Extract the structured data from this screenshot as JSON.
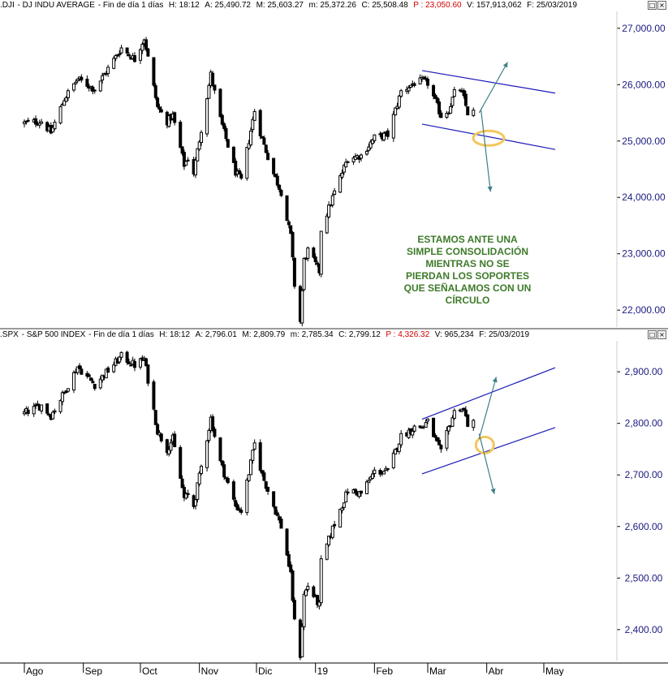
{
  "panels": [
    {
      "header": {
        "symbol": ".DJI",
        "name": "DJ INDU AVERAGE",
        "period": "Fin de día 1 días",
        "time": "H: 18:12",
        "open": "A: 25,490.72",
        "high": "M: 25,603.27",
        "low": "m: 25,372.26",
        "close": "C: 25,508.48",
        "p": "P : 23,050.60",
        "volume": "V: 157,913,062",
        "date": "F: 25/03/2019"
      },
      "window_buttons": [
        "□",
        "×"
      ]
    },
    {
      "header": {
        "symbol": ".SPX",
        "name": "S&P 500 INDEX",
        "period": "Fin de día 1 días",
        "time": "H: 18:12",
        "open": "A: 2,796.01",
        "high": "M: 2,809.79",
        "low": "m: 2,785.34",
        "close": "C: 2,799.12",
        "p": "P : 4,326.32",
        "volume": "V: 965,234",
        "date": "F: 25/03/2019"
      },
      "window_buttons": [
        "□",
        "×"
      ]
    }
  ],
  "annotation": {
    "lines": [
      "ESTAMOS ANTE UNA",
      "SIMPLE CONSOLIDACIÓN",
      "MIENTRAS NO SE",
      "PIERDAN LOS SOPORTES",
      "QUE SEÑALAMOS CON UN",
      "CÍRCULO"
    ],
    "color": "#3e7a2a"
  },
  "colors": {
    "candles": "#000000",
    "channel_lines": "#1a1ab8",
    "arrows": "#3d7f86",
    "circle": "#f2c75c",
    "axis_labels": "#1a1a80"
  },
  "chart_data": [
    {
      "type": "candlestick",
      "title": ".DJI - DJ INDU AVERAGE",
      "x_range": [
        "2018-08-01",
        "2019-05-31"
      ],
      "ylim": [
        21700,
        27300
      ],
      "yticks": [
        22000,
        23000,
        24000,
        25000,
        26000,
        27000
      ],
      "ytick_labels": [
        "22,000.00",
        "23,000.00",
        "24,000.00",
        "25,000.00",
        "26,000.00",
        "27,000.00"
      ],
      "close_path": [
        [
          "2018-08-01",
          25320
        ],
        [
          "2018-08-10",
          25350
        ],
        [
          "2018-08-15",
          25150
        ],
        [
          "2018-08-22",
          25750
        ],
        [
          "2018-08-29",
          26100
        ],
        [
          "2018-09-07",
          25920
        ],
        [
          "2018-09-21",
          26650
        ],
        [
          "2018-09-28",
          26450
        ],
        [
          "2018-10-03",
          26830
        ],
        [
          "2018-10-10",
          25600
        ],
        [
          "2018-10-15",
          25350
        ],
        [
          "2018-10-18",
          25450
        ],
        [
          "2018-10-24",
          24580
        ],
        [
          "2018-10-26",
          24690
        ],
        [
          "2018-10-29",
          24440
        ],
        [
          "2018-11-07",
          26180
        ],
        [
          "2018-11-12",
          25390
        ],
        [
          "2018-11-20",
          24450
        ],
        [
          "2018-11-23",
          24300
        ],
        [
          "2018-11-30",
          25540
        ],
        [
          "2018-12-04",
          25030
        ],
        [
          "2018-12-10",
          24420
        ],
        [
          "2018-12-14",
          24100
        ],
        [
          "2018-12-17",
          23600
        ],
        [
          "2018-12-19",
          23320
        ],
        [
          "2018-12-21",
          22450
        ],
        [
          "2018-12-24",
          21800
        ],
        [
          "2018-12-26",
          22880
        ],
        [
          "2018-12-28",
          23060
        ],
        [
          "2019-01-03",
          22690
        ],
        [
          "2019-01-04",
          23430
        ],
        [
          "2019-01-10",
          24000
        ],
        [
          "2019-01-18",
          24700
        ],
        [
          "2019-01-25",
          24740
        ],
        [
          "2019-02-01",
          25060
        ],
        [
          "2019-02-08",
          25110
        ],
        [
          "2019-02-15",
          25880
        ],
        [
          "2019-02-22",
          26030
        ],
        [
          "2019-02-26",
          26060
        ],
        [
          "2019-03-01",
          26030
        ],
        [
          "2019-03-08",
          25450
        ],
        [
          "2019-03-12",
          25550
        ],
        [
          "2019-03-15",
          25850
        ],
        [
          "2019-03-18",
          25920
        ],
        [
          "2019-03-20",
          25750
        ],
        [
          "2019-03-22",
          25500
        ],
        [
          "2019-03-25",
          25508
        ]
      ],
      "annotations": {
        "channel_upper": [
          [
            "2019-02-26",
            26250
          ],
          [
            "2019-05-07",
            25850
          ]
        ],
        "channel_lower": [
          [
            "2019-02-26",
            25300
          ],
          [
            "2019-05-07",
            24850
          ]
        ],
        "support_circle": [
          "2019-04-02",
          25050
        ],
        "arrow_up": [
          [
            "2019-03-28",
            25500
          ],
          [
            "2019-04-12",
            26400
          ]
        ],
        "arrow_down": [
          [
            "2019-03-29",
            25550
          ],
          [
            "2019-04-03",
            24100
          ]
        ]
      }
    },
    {
      "type": "candlestick",
      "title": ".SPX - S&P 500 INDEX",
      "x_range": [
        "2018-08-01",
        "2019-05-31"
      ],
      "ylim": [
        2340,
        2960
      ],
      "yticks": [
        2400,
        2500,
        2600,
        2700,
        2800,
        2900
      ],
      "ytick_labels": [
        "2,400.00",
        "2,500.00",
        "2,600.00",
        "2,700.00",
        "2,800.00",
        "2,900.00"
      ],
      "x_labels": [
        "Ago",
        "Sep",
        "Oct",
        "Nov",
        "Dic",
        "19",
        "Feb",
        "Mar",
        "Abr",
        "May"
      ],
      "close_path": [
        [
          "2018-08-01",
          2820
        ],
        [
          "2018-08-10",
          2835
        ],
        [
          "2018-08-15",
          2815
        ],
        [
          "2018-08-22",
          2860
        ],
        [
          "2018-08-29",
          2910
        ],
        [
          "2018-09-07",
          2875
        ],
        [
          "2018-09-21",
          2930
        ],
        [
          "2018-09-28",
          2913
        ],
        [
          "2018-10-03",
          2925
        ],
        [
          "2018-10-10",
          2785
        ],
        [
          "2018-10-15",
          2750
        ],
        [
          "2018-10-18",
          2770
        ],
        [
          "2018-10-24",
          2655
        ],
        [
          "2018-10-26",
          2660
        ],
        [
          "2018-10-29",
          2640
        ],
        [
          "2018-11-07",
          2810
        ],
        [
          "2018-11-12",
          2725
        ],
        [
          "2018-11-20",
          2640
        ],
        [
          "2018-11-23",
          2630
        ],
        [
          "2018-11-30",
          2760
        ],
        [
          "2018-12-04",
          2700
        ],
        [
          "2018-12-10",
          2640
        ],
        [
          "2018-12-14",
          2600
        ],
        [
          "2018-12-17",
          2545
        ],
        [
          "2018-12-19",
          2505
        ],
        [
          "2018-12-21",
          2415
        ],
        [
          "2018-12-24",
          2351
        ],
        [
          "2018-12-26",
          2467
        ],
        [
          "2018-12-28",
          2485
        ],
        [
          "2019-01-03",
          2447
        ],
        [
          "2019-01-04",
          2531
        ],
        [
          "2019-01-10",
          2596
        ],
        [
          "2019-01-18",
          2670
        ],
        [
          "2019-01-25",
          2664
        ],
        [
          "2019-02-01",
          2706
        ],
        [
          "2019-02-08",
          2707
        ],
        [
          "2019-02-15",
          2775
        ],
        [
          "2019-02-22",
          2792
        ],
        [
          "2019-02-26",
          2793
        ],
        [
          "2019-03-01",
          2803
        ],
        [
          "2019-03-08",
          2743
        ],
        [
          "2019-03-12",
          2791
        ],
        [
          "2019-03-15",
          2822
        ],
        [
          "2019-03-18",
          2832
        ],
        [
          "2019-03-20",
          2824
        ],
        [
          "2019-03-22",
          2800
        ],
        [
          "2019-03-25",
          2799
        ]
      ],
      "annotations": {
        "channel_upper": [
          [
            "2019-02-26",
            2808
          ],
          [
            "2019-05-07",
            2908
          ]
        ],
        "channel_lower": [
          [
            "2019-02-26",
            2702
          ],
          [
            "2019-05-07",
            2792
          ]
        ],
        "support_circle": [
          "2019-03-31",
          2758
        ],
        "arrow_up": [
          [
            "2019-03-28",
            2770
          ],
          [
            "2019-04-06",
            2890
          ]
        ],
        "arrow_down": [
          [
            "2019-03-28",
            2780
          ],
          [
            "2019-04-05",
            2663
          ]
        ]
      }
    }
  ]
}
